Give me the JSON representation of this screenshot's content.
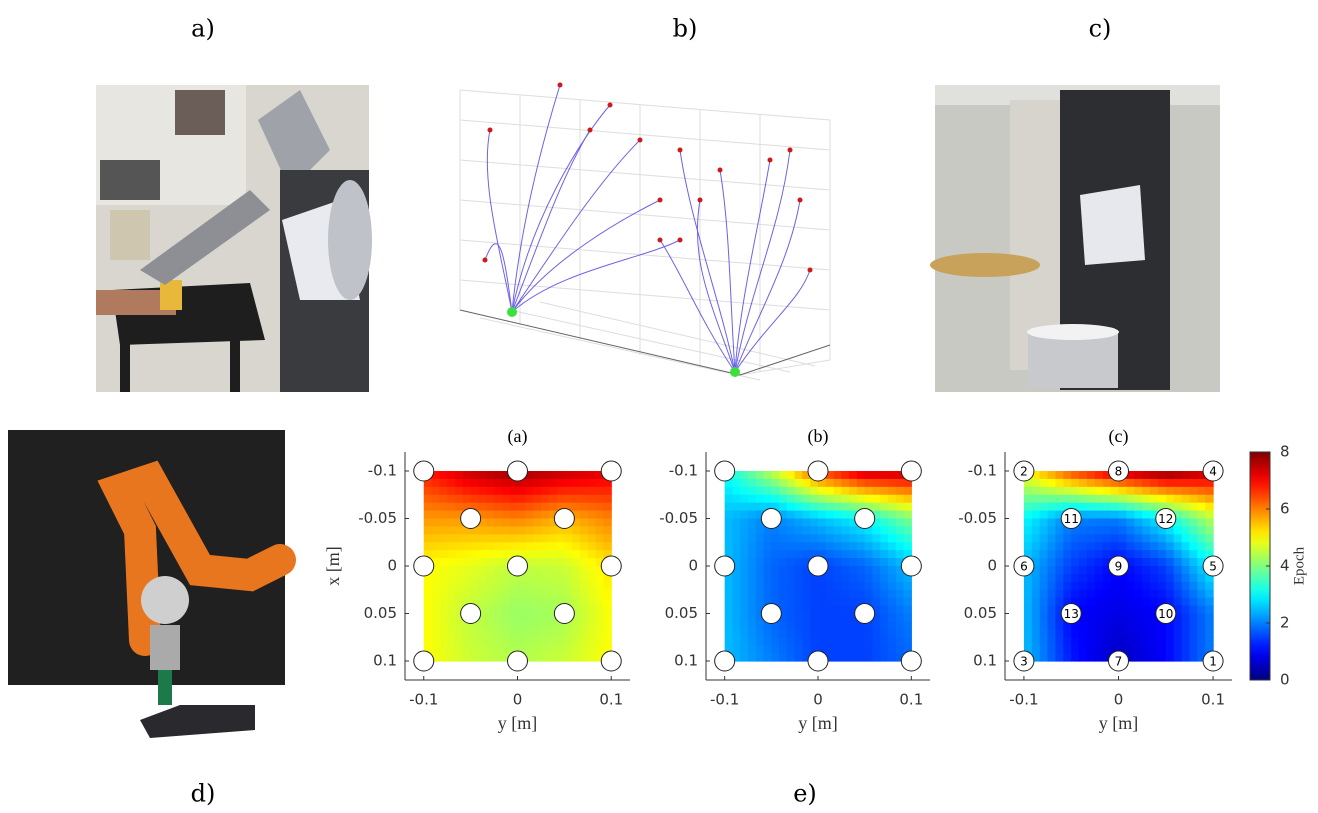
{
  "panels": {
    "a": "a)",
    "b": "b)",
    "c": "c)",
    "d": "d)",
    "e": "e)"
  },
  "chart_data": [
    {
      "type": "heatmap",
      "title": "(a)",
      "xlabel": "y [m]",
      "ylabel": "x [m]",
      "xlim": [
        -0.12,
        0.12
      ],
      "ylim": [
        -0.12,
        0.12
      ],
      "yreverse": true,
      "xticks": [
        -0.1,
        0,
        0.1
      ],
      "yticks": [
        -0.1,
        -0.05,
        0,
        0.05,
        0.1
      ],
      "clim": [
        0,
        8
      ],
      "colormap": "jet",
      "grid_x": [
        -0.1,
        -0.05,
        0,
        0.05,
        0.1
      ],
      "grid_y": [
        -0.1,
        -0.05,
        0,
        0.05,
        0.1
      ],
      "z": [
        [
          6.8,
          7.5,
          7.8,
          7.5,
          7.2
        ],
        [
          5.8,
          5.8,
          6,
          5.6,
          6
        ],
        [
          5,
          4.8,
          4.5,
          4.6,
          5.2
        ],
        [
          5,
          4.5,
          4.2,
          4.3,
          5
        ],
        [
          5,
          4.6,
          4.4,
          4.6,
          5
        ]
      ],
      "points_x": [
        -0.1,
        0,
        0.1,
        -0.05,
        0.05,
        -0.1,
        0,
        0.1,
        -0.05,
        0.05,
        -0.1,
        0,
        0.1
      ],
      "points_y": [
        -0.1,
        -0.1,
        -0.1,
        -0.05,
        -0.05,
        0,
        0,
        0,
        0.05,
        0.05,
        0.1,
        0.1,
        0.1
      ]
    },
    {
      "type": "heatmap",
      "title": "(b)",
      "xlabel": "y [m]",
      "xlim": [
        -0.12,
        0.12
      ],
      "ylim": [
        -0.12,
        0.12
      ],
      "yreverse": true,
      "xticks": [
        -0.1,
        0,
        0.1
      ],
      "yticks": [
        -0.1,
        -0.05,
        0,
        0.05,
        0.1
      ],
      "clim": [
        0,
        8
      ],
      "colormap": "jet",
      "grid_x": [
        -0.1,
        -0.05,
        0,
        0.05,
        0.1
      ],
      "grid_y": [
        -0.1,
        -0.05,
        0,
        0.05,
        0.1
      ],
      "z": [
        [
          3,
          4.5,
          6.5,
          7.5,
          7.5
        ],
        [
          2.5,
          2,
          2.5,
          3,
          4
        ],
        [
          2.5,
          1.8,
          1.5,
          1.8,
          2.5
        ],
        [
          2.5,
          1.8,
          1.5,
          1.5,
          2
        ],
        [
          2.5,
          2,
          1.5,
          1.5,
          1.8
        ]
      ],
      "points_x": [
        -0.1,
        0,
        0.1,
        -0.05,
        0.05,
        -0.1,
        0,
        0.1,
        -0.05,
        0.05,
        -0.1,
        0,
        0.1
      ],
      "points_y": [
        -0.1,
        -0.1,
        -0.1,
        -0.05,
        -0.05,
        0,
        0,
        0,
        0.05,
        0.05,
        0.1,
        0.1,
        0.1
      ]
    },
    {
      "type": "heatmap",
      "title": "(c)",
      "xlabel": "y [m]",
      "xlim": [
        -0.12,
        0.12
      ],
      "ylim": [
        -0.12,
        0.12
      ],
      "yreverse": true,
      "xticks": [
        -0.1,
        0,
        0.1
      ],
      "yticks": [
        -0.1,
        -0.05,
        0,
        0.05,
        0.1
      ],
      "clim": [
        0,
        8
      ],
      "colormap": "jet",
      "grid_x": [
        -0.1,
        -0.05,
        0,
        0.05,
        0.1
      ],
      "grid_y": [
        -0.1,
        -0.05,
        0,
        0.05,
        0.1
      ],
      "z": [
        [
          5,
          6.5,
          7.5,
          8,
          7.5
        ],
        [
          3,
          2,
          2,
          3,
          4.5
        ],
        [
          2.5,
          1.5,
          1,
          1.5,
          3
        ],
        [
          2.5,
          1,
          0.8,
          1,
          2
        ],
        [
          2.5,
          1.2,
          0.5,
          1,
          2
        ]
      ],
      "points_x": [
        -0.1,
        0,
        0.1,
        -0.05,
        0.05,
        -0.1,
        0,
        0.1,
        -0.05,
        0.05,
        -0.1,
        0,
        0.1
      ],
      "points_y": [
        -0.1,
        -0.1,
        -0.1,
        -0.05,
        -0.05,
        0,
        0,
        0,
        0.05,
        0.05,
        0.1,
        0.1,
        0.1
      ],
      "point_labels": [
        2,
        8,
        4,
        11,
        12,
        6,
        9,
        5,
        13,
        10,
        3,
        7,
        1
      ],
      "colorbar": {
        "label": "Epoch",
        "ticks": [
          0,
          2,
          4,
          6,
          8
        ]
      }
    }
  ]
}
